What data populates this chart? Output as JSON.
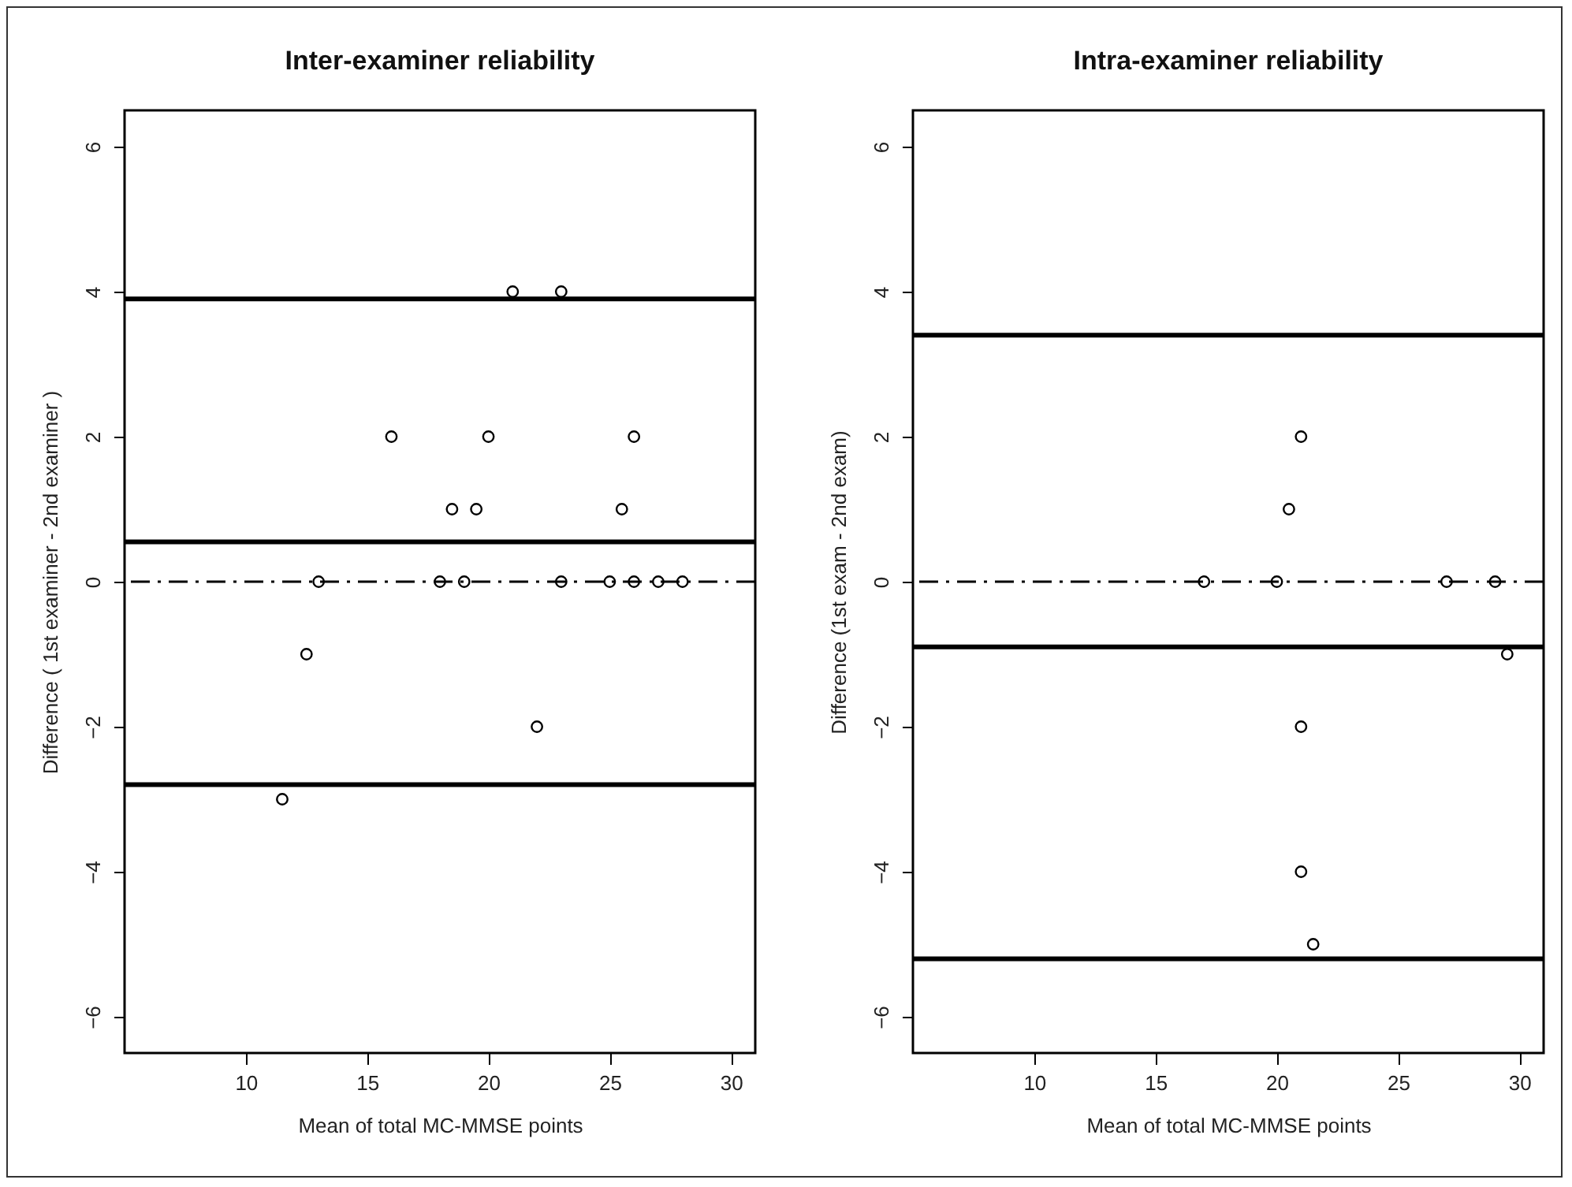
{
  "chart_data": [
    {
      "type": "scatter",
      "title": "Inter-examiner reliability",
      "xlabel": "Mean of total MC-MMSE points",
      "ylabel": "Difference ( 1st examiner - 2nd examiner )",
      "xlim": [
        5,
        31
      ],
      "ylim": [
        -6.5,
        6.5
      ],
      "xticks": [
        10,
        15,
        20,
        25,
        30
      ],
      "yticks": [
        -6,
        -4,
        -2,
        0,
        2,
        4,
        6
      ],
      "grid": false,
      "marker": "circle",
      "series": [
        {
          "color": "#000000",
          "x": [
            21,
            23,
            16,
            20,
            26,
            18.5,
            19.5,
            25.5,
            13,
            18,
            19,
            23,
            25,
            26,
            27,
            28,
            12.5,
            22,
            11.5
          ],
          "values": [
            4,
            4,
            2,
            2,
            2,
            1,
            1,
            1,
            0,
            0,
            0,
            0,
            0,
            0,
            0,
            0,
            -1,
            -2,
            -3
          ]
        }
      ],
      "ref_lines": [
        {
          "axis": "y",
          "value": 3.9,
          "color": "#000000",
          "line_style": "solid"
        },
        {
          "axis": "y",
          "value": 0.55,
          "color": "#000000",
          "line_style": "solid"
        },
        {
          "axis": "y",
          "value": 0,
          "color": "#000000",
          "line_style": "dashdot"
        },
        {
          "axis": "y",
          "value": -2.8,
          "color": "#000000",
          "line_style": "solid"
        }
      ]
    },
    {
      "type": "scatter",
      "title": "Intra-examiner reliability",
      "xlabel": "Mean of total MC-MMSE points",
      "ylabel": "Difference (1st exam - 2nd exam)",
      "xlim": [
        5,
        31
      ],
      "ylim": [
        -6.5,
        6.5
      ],
      "xticks": [
        10,
        15,
        20,
        25,
        30
      ],
      "yticks": [
        -6,
        -4,
        -2,
        0,
        2,
        4,
        6
      ],
      "grid": false,
      "marker": "circle",
      "series": [
        {
          "color": "#000000",
          "x": [
            21,
            20.5,
            17,
            20,
            27,
            29,
            29.5,
            21,
            21,
            21.5
          ],
          "values": [
            2,
            1,
            0,
            0,
            0,
            0,
            -1,
            -2,
            -4,
            -5
          ]
        }
      ],
      "ref_lines": [
        {
          "axis": "y",
          "value": 3.4,
          "color": "#000000",
          "line_style": "solid"
        },
        {
          "axis": "y",
          "value": 0,
          "color": "#000000",
          "line_style": "dashdot"
        },
        {
          "axis": "y",
          "value": -0.9,
          "color": "#000000",
          "line_style": "solid"
        },
        {
          "axis": "y",
          "value": -5.2,
          "color": "#000000",
          "line_style": "solid"
        }
      ]
    }
  ]
}
